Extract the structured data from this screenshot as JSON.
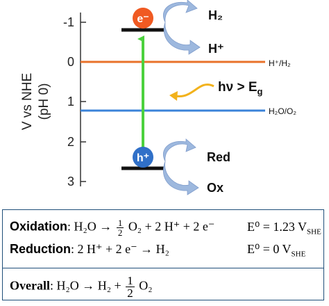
{
  "axis": {
    "label_line1": "V vs NHE",
    "label_line2": "(pH 0)",
    "ticks": [
      "-1",
      "0",
      "1",
      "2",
      "3"
    ]
  },
  "levels": {
    "h_h2": "H⁺/H₂",
    "h2o_o2": "H₂O/O₂"
  },
  "particles": {
    "electron": "e⁻",
    "hole": "h⁺"
  },
  "labels": {
    "h2": "H₂",
    "hplus": "H⁺",
    "photon": "hν > E",
    "photon_sub": "g",
    "red": "Red",
    "ox": "Ox"
  },
  "colors": {
    "orange_level": "#e8722a",
    "blue_level": "#3b83d9",
    "green_arrow": "#4cd13e",
    "electron": "#f05a22",
    "hole": "#3070c8",
    "photon_arrow": "#f2b21c",
    "curved_arrow": "#9db8de",
    "box_border": "#1f4e79"
  },
  "equations": {
    "oxidation": {
      "label": "Oxidation",
      "lhs": "H₂O  →",
      "frac_num": "1",
      "frac_den": "2",
      "rhs": "O₂  + 2 H⁺ + 2 e⁻",
      "potential": "E⁰ = 1.23 V",
      "potential_sub": "SHE"
    },
    "reduction": {
      "label": "Reduction",
      "body": "2 H⁺ + 2 e⁻ → H₂",
      "potential": "E⁰ = 0 V",
      "potential_sub": "SHE"
    },
    "overall": {
      "label": "Overall",
      "lhs": "H₂O  → H₂ +",
      "frac_num": "1",
      "frac_den": "2",
      "rhs": "O₂"
    }
  }
}
